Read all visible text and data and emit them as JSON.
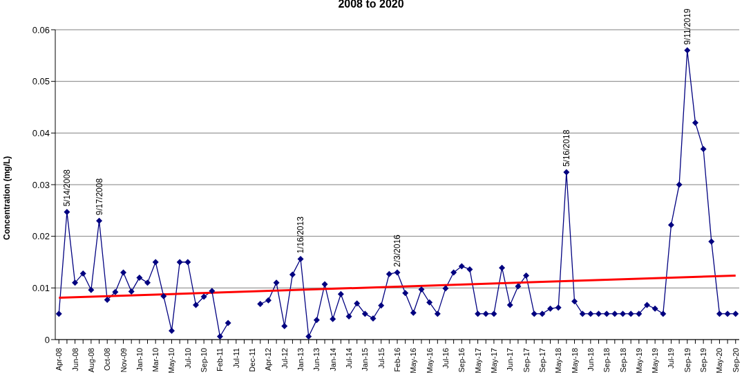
{
  "chart_data": {
    "type": "line",
    "title": "2008 to 2020",
    "ylabel": "Concentration (mg/L)",
    "categories": [
      "Apr-08",
      null,
      "Jun-08",
      null,
      "Aug-08",
      null,
      "Oct-08",
      null,
      "Nov-09",
      null,
      "Jan-10",
      null,
      "Mar-10",
      null,
      "May-10",
      null,
      "Jul-10",
      null,
      "Sep-10",
      null,
      "Feb-11",
      null,
      "Jul-11",
      null,
      "Dec-11",
      null,
      "Apr-12",
      null,
      "Jul-12",
      null,
      "Jan-13",
      null,
      "Jun-13",
      null,
      "Jan-14",
      null,
      "Jul-14",
      null,
      "Jan-15",
      null,
      "Jul-15",
      null,
      "Feb-16",
      null,
      "May-16",
      null,
      "May-16",
      null,
      "Jul-16",
      null,
      "Sep-16",
      null,
      "May-17",
      null,
      "May-17",
      null,
      "Jun-17",
      null,
      "Sep-17",
      null,
      "Sep-17",
      null,
      "May-18",
      null,
      "May-18",
      null,
      "Jun-18",
      null,
      "Sep-18",
      null,
      "Sep-18",
      null,
      "May-19",
      null,
      "May-19",
      null,
      "Jul-19",
      null,
      "Sep-19",
      null,
      "Sep-19",
      null,
      "May-20",
      null,
      "Sep-20"
    ],
    "series": [
      {
        "color": "#000080",
        "marker": "diamond",
        "values": [
          0.005,
          0.0247,
          0.011,
          0.0128,
          0.0096,
          0.023,
          0.0077,
          0.0092,
          0.013,
          0.0093,
          0.012,
          0.011,
          0.015,
          0.0084,
          0.0017,
          0.015,
          0.015,
          0.0067,
          0.0083,
          0.0094,
          0.0006,
          0.0032,
          null,
          null,
          null,
          0.0069,
          0.0076,
          0.011,
          0.0026,
          0.0126,
          0.0156,
          0.0006,
          0.0038,
          0.0107,
          0.004,
          0.0088,
          0.0045,
          0.007,
          0.005,
          0.0041,
          0.0066,
          0.0127,
          0.013,
          0.009,
          0.0052,
          0.0097,
          0.0072,
          0.005,
          0.0099,
          0.013,
          0.0142,
          0.0136,
          0.005,
          0.005,
          0.005,
          0.0139,
          0.0067,
          0.0103,
          0.0124,
          0.005,
          0.005,
          0.006,
          0.0062,
          0.0324,
          0.0074,
          0.005,
          0.005,
          0.005,
          0.005,
          0.005,
          0.005,
          0.005,
          0.005,
          0.0067,
          0.006,
          0.005,
          0.0222,
          0.03,
          0.056,
          0.042,
          0.0369,
          0.019,
          0.005,
          0.005,
          0.005
        ],
        "value_labels": [
          null,
          "5/14/2008",
          null,
          null,
          null,
          "9/17/2008",
          null,
          null,
          null,
          null,
          null,
          null,
          null,
          null,
          null,
          null,
          null,
          null,
          null,
          null,
          null,
          null,
          null,
          null,
          null,
          null,
          null,
          null,
          null,
          null,
          "1/16/2013",
          null,
          null,
          null,
          null,
          null,
          null,
          null,
          null,
          null,
          null,
          null,
          "2/3/2016",
          null,
          null,
          null,
          null,
          null,
          null,
          null,
          null,
          null,
          null,
          null,
          null,
          null,
          null,
          null,
          null,
          null,
          null,
          null,
          null,
          "5/16/2018",
          null,
          null,
          null,
          null,
          null,
          null,
          null,
          null,
          null,
          null,
          null,
          null,
          null,
          null,
          "9/11/2019",
          null,
          null,
          null,
          null,
          null,
          null
        ]
      },
      {
        "color": "#ff0000",
        "marker": "none",
        "x": [
          "Apr-08",
          "Sep-20"
        ],
        "values": [
          0.0081,
          0.0124
        ]
      }
    ],
    "ylim": [
      0,
      0.06
    ],
    "yticks": [
      0,
      0.01,
      0.02,
      0.03,
      0.04,
      0.05,
      0.06
    ],
    "grid": "y",
    "legend": false
  }
}
